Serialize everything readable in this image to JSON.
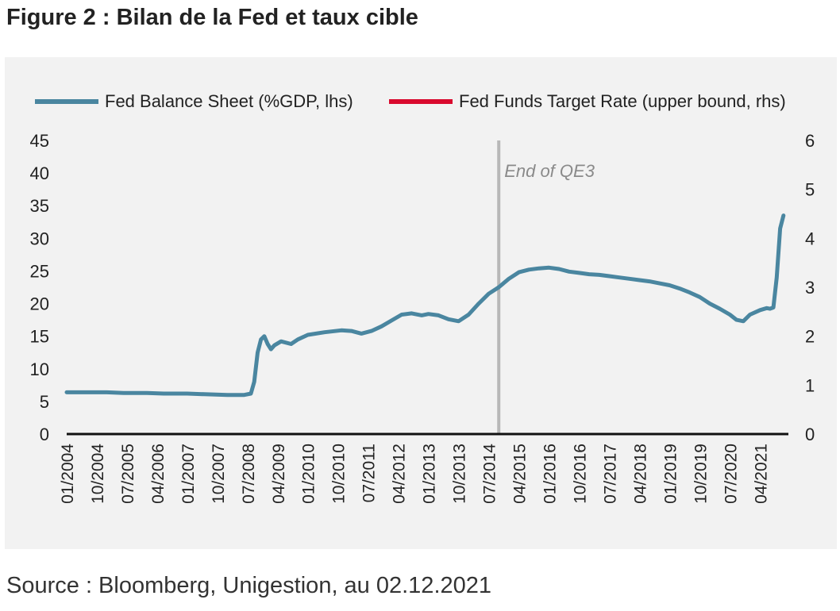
{
  "title": "Figure 2 : Bilan de la Fed et taux cible",
  "source": "Source : Bloomberg, Unigestion, au 02.12.2021",
  "colors": {
    "balance": "#4a86a0",
    "rate": "#d90a2e",
    "vline": "#b8b8b8",
    "background": "#f2f2f2"
  },
  "chart_data": {
    "type": "line",
    "title": "",
    "legend_position": "top",
    "x_tick_labels": [
      "01/2004",
      "10/2004",
      "07/2005",
      "04/2006",
      "01/2007",
      "10/2007",
      "07/2008",
      "04/2009",
      "01/2010",
      "10/2010",
      "07/2011",
      "04/2012",
      "01/2013",
      "10/2013",
      "07/2014",
      "04/2015",
      "01/2016",
      "10/2016",
      "07/2017",
      "04/2018",
      "01/2019",
      "10/2019",
      "07/2020",
      "04/2021"
    ],
    "x_range": [
      "2004-01",
      "2021-12"
    ],
    "y_left": {
      "range": [
        0,
        45
      ],
      "ticks": [
        "0",
        "5",
        "10",
        "15",
        "20",
        "25",
        "30",
        "35",
        "40",
        "45"
      ]
    },
    "y_right": {
      "range": [
        0,
        6
      ],
      "ticks": [
        "0",
        "1",
        "2",
        "3",
        "4",
        "5",
        "6"
      ]
    },
    "annotation": {
      "text": "End of QE3",
      "x": "2014-10"
    },
    "series": [
      {
        "name": "Fed Balance Sheet (%GDP, lhs)",
        "axis": "left",
        "points": [
          [
            "2004-01",
            6.4
          ],
          [
            "2004-06",
            6.4
          ],
          [
            "2005-01",
            6.4
          ],
          [
            "2005-06",
            6.3
          ],
          [
            "2006-01",
            6.3
          ],
          [
            "2006-06",
            6.2
          ],
          [
            "2007-01",
            6.2
          ],
          [
            "2007-06",
            6.1
          ],
          [
            "2008-01",
            6.0
          ],
          [
            "2008-06",
            6.0
          ],
          [
            "2008-08",
            6.2
          ],
          [
            "2008-09",
            8.0
          ],
          [
            "2008-10",
            12.5
          ],
          [
            "2008-11",
            14.5
          ],
          [
            "2008-12",
            15.0
          ],
          [
            "2009-01",
            13.8
          ],
          [
            "2009-02",
            13.0
          ],
          [
            "2009-03",
            13.6
          ],
          [
            "2009-05",
            14.2
          ],
          [
            "2009-08",
            13.8
          ],
          [
            "2009-10",
            14.5
          ],
          [
            "2010-01",
            15.2
          ],
          [
            "2010-06",
            15.6
          ],
          [
            "2010-11",
            15.9
          ],
          [
            "2011-02",
            15.8
          ],
          [
            "2011-05",
            15.4
          ],
          [
            "2011-08",
            15.8
          ],
          [
            "2011-11",
            16.5
          ],
          [
            "2012-02",
            17.4
          ],
          [
            "2012-05",
            18.3
          ],
          [
            "2012-08",
            18.5
          ],
          [
            "2012-11",
            18.2
          ],
          [
            "2013-01",
            18.4
          ],
          [
            "2013-04",
            18.2
          ],
          [
            "2013-07",
            17.6
          ],
          [
            "2013-10",
            17.3
          ],
          [
            "2014-01",
            18.3
          ],
          [
            "2014-04",
            20.0
          ],
          [
            "2014-07",
            21.5
          ],
          [
            "2014-10",
            22.5
          ],
          [
            "2015-01",
            23.8
          ],
          [
            "2015-04",
            24.8
          ],
          [
            "2015-07",
            25.2
          ],
          [
            "2015-10",
            25.4
          ],
          [
            "2016-01",
            25.5
          ],
          [
            "2016-04",
            25.3
          ],
          [
            "2016-07",
            24.9
          ],
          [
            "2016-10",
            24.7
          ],
          [
            "2017-01",
            24.5
          ],
          [
            "2017-04",
            24.4
          ],
          [
            "2017-07",
            24.2
          ],
          [
            "2017-10",
            24.0
          ],
          [
            "2018-01",
            23.8
          ],
          [
            "2018-04",
            23.6
          ],
          [
            "2018-07",
            23.4
          ],
          [
            "2018-10",
            23.1
          ],
          [
            "2019-01",
            22.8
          ],
          [
            "2019-04",
            22.3
          ],
          [
            "2019-07",
            21.7
          ],
          [
            "2019-10",
            21.0
          ],
          [
            "2020-01",
            20.0
          ],
          [
            "2020-04",
            19.2
          ],
          [
            "2020-07",
            18.3
          ],
          [
            "2020-09",
            17.5
          ],
          [
            "2020-11",
            17.3
          ],
          [
            "2021-01",
            18.3
          ],
          [
            "2021-04",
            19.0
          ],
          [
            "2021-06",
            19.3
          ],
          [
            "2021-07",
            19.2
          ],
          [
            "2021-08",
            19.4
          ],
          [
            "2021-09",
            24.0
          ],
          [
            "2021-10",
            31.5
          ],
          [
            "2021-11",
            33.5
          ]
        ]
      },
      {
        "name": "Fed Funds Target Rate (upper bound, rhs)",
        "axis": "right",
        "points": []
      }
    ]
  },
  "legend": [
    {
      "label": "Fed Balance Sheet (%GDP, lhs)",
      "color": "#4a86a0"
    },
    {
      "label": "Fed Funds Target Rate (upper bound, rhs)",
      "color": "#d90a2e"
    }
  ]
}
